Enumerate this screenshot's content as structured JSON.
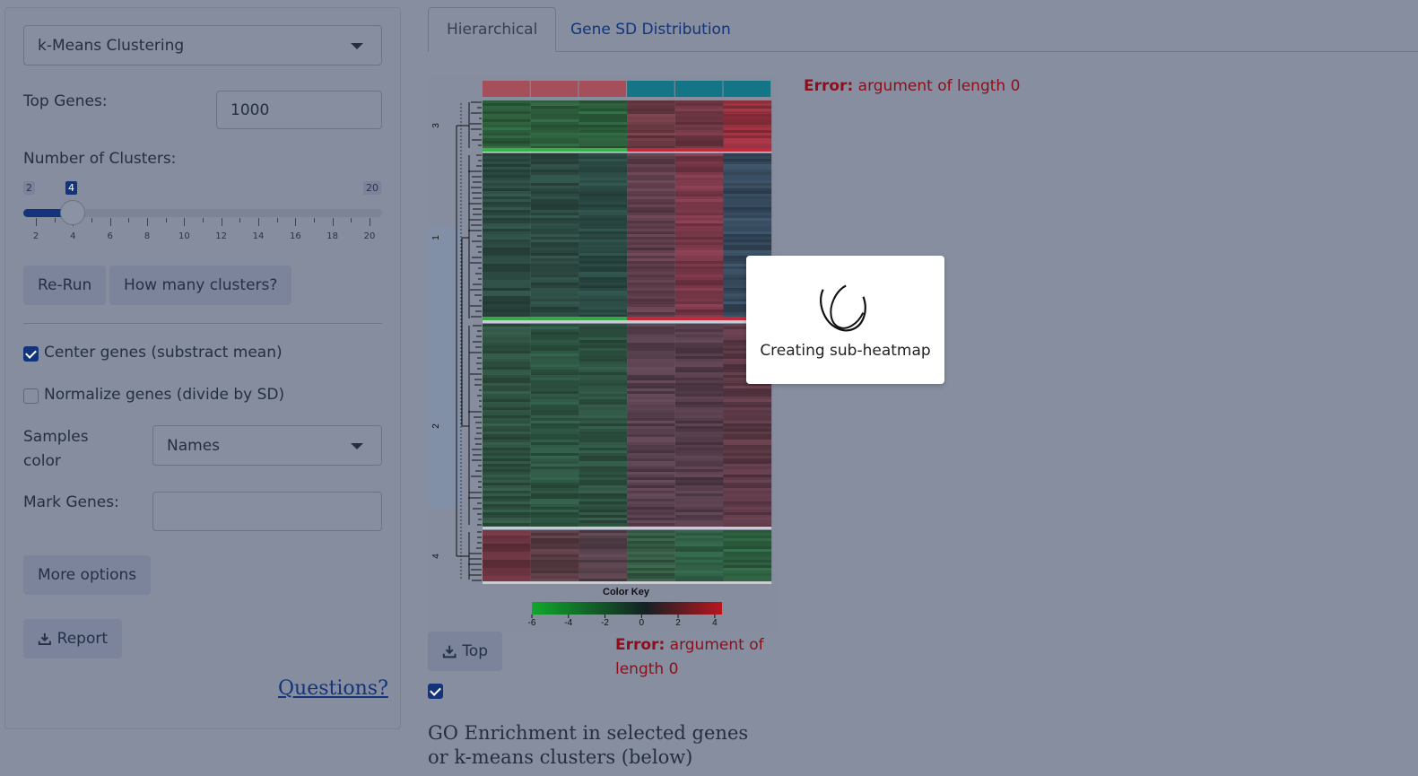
{
  "sidebar": {
    "method_select": "k-Means Clustering",
    "top_genes_label": "Top Genes:",
    "top_genes_value": "1000",
    "clusters_label": "Number of Clusters:",
    "slider": {
      "min_label": "2",
      "value_label": "4",
      "max_label": "20",
      "value": 4,
      "min": 2,
      "max": 20,
      "ticks": [
        "2",
        "4",
        "6",
        "8",
        "10",
        "12",
        "14",
        "16",
        "18",
        "20"
      ]
    },
    "rerun_button": "Re-Run",
    "how_many_button": "How many clusters?",
    "center_genes_label": "Center genes (substract mean)",
    "center_genes_checked": true,
    "normalize_genes_label": "Normalize genes (divide by SD)",
    "normalize_genes_checked": false,
    "samples_color_label": "Samples color",
    "samples_color_value": "Names",
    "mark_genes_label": "Mark Genes:",
    "mark_genes_value": "",
    "more_options_button": "More options",
    "report_button": "Report",
    "questions_link": "Questions?"
  },
  "tabs": [
    {
      "label": "Hierarchical",
      "active": true
    },
    {
      "label": "Gene SD Distribution",
      "active": false
    }
  ],
  "heatmap": {
    "cluster_labels": [
      "3",
      "1",
      "2",
      "4"
    ],
    "color_key_title": "Color Key",
    "color_key_ticks": [
      "-6",
      "-4",
      "-2",
      "0",
      "2",
      "4"
    ],
    "sample_colors": [
      "#a54f5b",
      "#a54f5b",
      "#a54f5b",
      "#137585",
      "#137585",
      "#137585"
    ]
  },
  "errors": {
    "top_prefix": "Error:",
    "top_message": "argument of length 0",
    "bottom_prefix": "Error:",
    "bottom_message": "argument of length 0"
  },
  "modal": {
    "message": "Creating sub-heatmap"
  },
  "top_button": "Top",
  "enrichment_checkbox_checked": true,
  "section_title": "GO Enrichment in selected genes or k-means clusters (below)"
}
